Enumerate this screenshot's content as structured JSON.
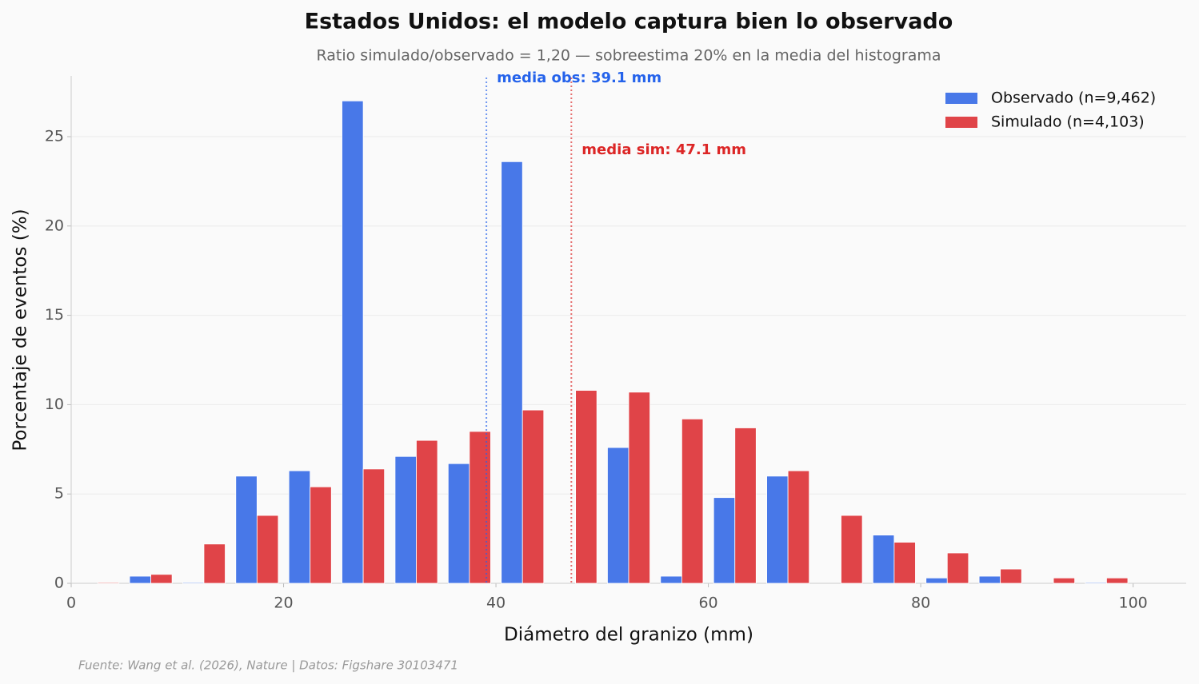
{
  "chart_data": {
    "type": "histogram",
    "title": "Estados Unidos: el modelo captura bien lo observado",
    "subtitle": "Ratio simulado/observado = 1,20 — sobreestima 20% en la media del histograma",
    "x_label": "Diámetro del granizo (mm)",
    "y_label": "Porcentaje de eventos (%)",
    "source": "Fuente: Wang et al. (2026), Nature | Datos: Figshare 30103471",
    "bins": [
      0,
      5,
      10,
      15,
      20,
      25,
      30,
      35,
      40,
      45,
      50,
      55,
      60,
      65,
      70,
      75,
      80,
      85,
      90,
      95,
      100
    ],
    "series": [
      {
        "name": "Observado (n=9,462)",
        "color": "#4878e8",
        "values": [
          0,
          0.4,
          0.05,
          6.0,
          6.3,
          27.0,
          7.1,
          6.7,
          23.6,
          0,
          7.6,
          0.4,
          4.8,
          6.0,
          0,
          2.7,
          0.3,
          0.4,
          0,
          0.05
        ]
      },
      {
        "name": "Simulado (n=4,103)",
        "color": "#e04448",
        "values": [
          0.05,
          0.5,
          2.2,
          3.8,
          5.4,
          6.4,
          8.0,
          8.5,
          9.7,
          10.8,
          10.7,
          9.2,
          8.7,
          6.3,
          3.8,
          2.3,
          1.7,
          0.8,
          0.3,
          0.3
        ]
      }
    ],
    "mean_lines": [
      {
        "x": 39.1,
        "label": "media obs: 39.1 mm",
        "color": "#2563eb"
      },
      {
        "x": 47.1,
        "label": "media sim: 47.1 mm",
        "color": "#dc2626"
      }
    ],
    "xlim": [
      0,
      105
    ],
    "xticks": [
      0,
      20,
      40,
      60,
      80,
      100
    ],
    "ylim": [
      0,
      28.4
    ],
    "yticks": [
      0,
      5,
      10,
      15,
      20,
      25
    ],
    "grid": true,
    "legend": "upper right"
  }
}
